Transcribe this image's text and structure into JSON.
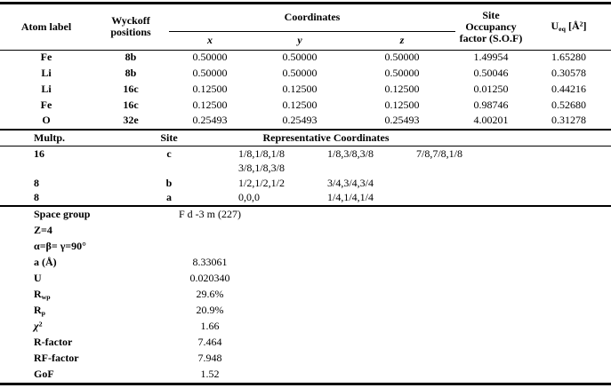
{
  "atoms_table": {
    "headers": {
      "atom_label": "Atom label",
      "wyckoff_lines": [
        "Wyckoff",
        "positions"
      ],
      "coordinates": "Coordinates",
      "x": "x",
      "y": "y",
      "z": "z",
      "sof_lines": [
        "Site",
        "Occupancy",
        "factor (S.O.F)"
      ],
      "ueq_rich": "U<sub>eq</sub> [&#197;<sup>2</sup>]"
    },
    "rows": [
      {
        "atom": "Fe",
        "wyckoff": "8b",
        "x": "0.50000",
        "y": "0.50000",
        "z": "0.50000",
        "sof": "1.49954",
        "ueq": "1.65280"
      },
      {
        "atom": "Li",
        "wyckoff": "8b",
        "x": "0.50000",
        "y": "0.50000",
        "z": "0.50000",
        "sof": "0.50046",
        "ueq": "0.30578"
      },
      {
        "atom": "Li",
        "wyckoff": "16c",
        "x": "0.12500",
        "y": "0.12500",
        "z": "0.12500",
        "sof": "0.01250",
        "ueq": "0.44216"
      },
      {
        "atom": "Fe",
        "wyckoff": "16c",
        "x": "0.12500",
        "y": "0.12500",
        "z": "0.12500",
        "sof": "0.98746",
        "ueq": "0.52680"
      },
      {
        "atom": "O",
        "wyckoff": "32e",
        "x": "0.25493",
        "y": "0.25493",
        "z": "0.25493",
        "sof": "4.00201",
        "ueq": "0.31278"
      }
    ]
  },
  "sites_table": {
    "headers": {
      "multp": "Multp.",
      "site": "Site",
      "representative": "Representative Coordinates"
    },
    "rows": [
      {
        "multp": "16",
        "site": "c",
        "c1": "1/8,1/8,1/8",
        "c2": "1/8,3/8,3/8",
        "c3": "7/8,7/8,1/8"
      },
      {
        "multp": "",
        "site": "",
        "c1": "3/8,1/8,3/8",
        "c2": "",
        "c3": ""
      },
      {
        "multp": "8",
        "site": "b",
        "c1": "1/2,1/2,1/2",
        "c2": "3/4,3/4,3/4",
        "c3": ""
      },
      {
        "multp": "8",
        "site": "a",
        "c1": "0,0,0",
        "c2": "1/4,1/4,1/4",
        "c3": ""
      }
    ]
  },
  "params_table": {
    "rows": [
      {
        "label_rich": "Space group",
        "value": "F d -3 m (227)"
      },
      {
        "label_rich": "Z=4",
        "value": ""
      },
      {
        "label_rich": "α=β= γ=90°",
        "value": ""
      },
      {
        "label_rich": "a (Å)",
        "value": "8.33061"
      },
      {
        "label_rich": "U",
        "value": "0.020340"
      },
      {
        "label_rich": "R<sub>wp</sub>",
        "value": "29.6%"
      },
      {
        "label_rich": "R<sub>p</sub>",
        "value": "20.9%"
      },
      {
        "label_rich": "<i>χ</i><sup>2</sup>",
        "value": "1.66"
      },
      {
        "label_rich": "R-factor",
        "value": "7.464"
      },
      {
        "label_rich": "RF-factor",
        "value": "7.948"
      },
      {
        "label_rich": "GoF",
        "value": "1.52"
      }
    ]
  }
}
